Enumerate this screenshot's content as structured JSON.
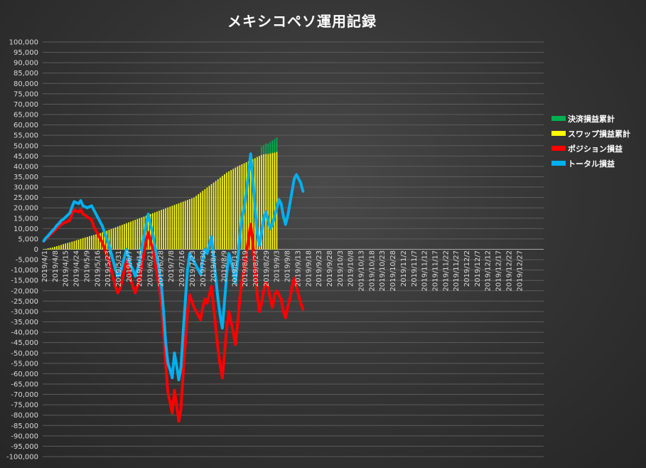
{
  "chart_data": {
    "type": "bar",
    "title": "メキシコペソ運用記録",
    "ylim": [
      -100000,
      100000
    ],
    "y_ticks": [
      100000,
      95000,
      90000,
      85000,
      80000,
      75000,
      70000,
      65000,
      60000,
      55000,
      50000,
      45000,
      40000,
      35000,
      30000,
      25000,
      20000,
      15000,
      10000,
      5000,
      0,
      -5000,
      -10000,
      -15000,
      -20000,
      -25000,
      -30000,
      -35000,
      -40000,
      -45000,
      -50000,
      -55000,
      -60000,
      -65000,
      -70000,
      -75000,
      -80000,
      -85000,
      -90000,
      -95000,
      -100000
    ],
    "y_tick_labels": [
      "100,000",
      "95,000",
      "90,000",
      "85,000",
      "80,000",
      "75,000",
      "70,000",
      "65,000",
      "60,000",
      "55,000",
      "50,000",
      "45,000",
      "40,000",
      "35,000",
      "30,000",
      "25,000",
      "20,000",
      "15,000",
      "10,000",
      "5,000",
      "0",
      "-5,000",
      "-10,000",
      "-15,000",
      "-20,000",
      "-25,000",
      "-30,000",
      "-35,000",
      "-40,000",
      "-45,000",
      "-50,000",
      "-55,000",
      "-60,000",
      "-65,000",
      "-70,000",
      "-75,000",
      "-80,000",
      "-85,000",
      "-90,000",
      "-95,000",
      "-100,000"
    ],
    "x_tick_labels": [
      "2019/4/1",
      "2019/4/8",
      "2019/4/15",
      "2019/4/24",
      "2019/5/9",
      "2019/5/16",
      "2019/5/23",
      "2019/5/31",
      "2019/6/7",
      "2019/6/14",
      "2019/6/21",
      "2019/6/28",
      "2019/7/8",
      "2019/7/16",
      "2019/7/23",
      "2019/7/30",
      "2019/8/4",
      "2019/8/9",
      "2019/8/14",
      "2019/8/19",
      "2019/8/24",
      "2019/8/29",
      "2019/9/3",
      "2019/9/8",
      "2019/9/13",
      "2019/9/18",
      "2019/9/23",
      "2019/9/28",
      "2019/10/3",
      "2019/10/8",
      "2019/10/13",
      "2019/10/18",
      "2019/10/23",
      "2019/10/28",
      "2019/11/2",
      "2019/11/7",
      "2019/11/12",
      "2019/11/17",
      "2019/11/22",
      "2019/11/27",
      "2019/12/2",
      "2019/12/7",
      "2019/12/12",
      "2019/12/17",
      "2019/12/22",
      "2019/12/27"
    ],
    "total_slots": 230,
    "series": [
      {
        "name": "決済損益累計",
        "kind": "bar",
        "color": "#00b050",
        "values": [
          0,
          0,
          0,
          0,
          0,
          0,
          0,
          0,
          0,
          0,
          0,
          0,
          0,
          0,
          0,
          0,
          0,
          0,
          0,
          0,
          0,
          0,
          0,
          0,
          0,
          0,
          0,
          0,
          0,
          0,
          0,
          0,
          0,
          0,
          0,
          0,
          0,
          0,
          0,
          0,
          0,
          0,
          0,
          0,
          0,
          0,
          0,
          0,
          0,
          0,
          0,
          0,
          0,
          0,
          0,
          0,
          0,
          0,
          0,
          0,
          0,
          0,
          0,
          0,
          0,
          0,
          0,
          0,
          0,
          0,
          0,
          0,
          0,
          0,
          0,
          0,
          0,
          0,
          0,
          0,
          0,
          0,
          0,
          0,
          0,
          0,
          0,
          0,
          0,
          0,
          0,
          0,
          0,
          0,
          0,
          0,
          0,
          0,
          0,
          0,
          4000,
          4500,
          5000,
          5000,
          5500,
          6000,
          6500,
          7000
        ]
      },
      {
        "name": "スワップ損益累計",
        "kind": "bar",
        "color": "#ffff00",
        "values": [
          0,
          200,
          500,
          700,
          900,
          1200,
          1500,
          1800,
          2100,
          2500,
          2800,
          3100,
          3400,
          3700,
          4000,
          4400,
          4700,
          5000,
          5400,
          5700,
          6000,
          6300,
          6600,
          6900,
          7200,
          7500,
          7800,
          8200,
          8600,
          9000,
          9400,
          9800,
          10200,
          10600,
          11000,
          11400,
          11800,
          12200,
          12600,
          13000,
          13400,
          13800,
          14200,
          14600,
          15000,
          15400,
          15800,
          16200,
          16600,
          17000,
          17400,
          17800,
          18200,
          18600,
          19000,
          19400,
          19800,
          20200,
          20600,
          21000,
          21400,
          21800,
          22200,
          22600,
          23000,
          23400,
          23800,
          24200,
          24600,
          25000,
          25800,
          26600,
          27400,
          28200,
          29000,
          29800,
          30600,
          31400,
          32200,
          33000,
          33800,
          34600,
          35400,
          36200,
          37000,
          37600,
          38200,
          38800,
          39400,
          40000,
          40500,
          41000,
          41500,
          42000,
          42500,
          43000,
          43500,
          44000,
          44500,
          45000,
          45500,
          45800,
          46000,
          46000,
          46300,
          46500,
          46700,
          47000
        ]
      },
      {
        "name": "ポジション損益",
        "kind": "line",
        "color": "#ff0000",
        "values": [
          4000,
          5000,
          6000,
          7000,
          8000,
          9000,
          10000,
          11000,
          12000,
          12500,
          13000,
          13500,
          14000,
          17000,
          19000,
          18500,
          18000,
          19000,
          17000,
          16500,
          15500,
          15000,
          14000,
          11000,
          9000,
          7000,
          5000,
          3000,
          0,
          -3000,
          -6000,
          -10000,
          -14000,
          -18000,
          -21000,
          -19000,
          -15000,
          -10000,
          -6000,
          -10000,
          -15000,
          -18000,
          -21000,
          -18000,
          -14000,
          -8000,
          -2000,
          4000,
          8000,
          4000,
          0,
          -6000,
          -12000,
          -18000,
          -26000,
          -40000,
          -55000,
          -69000,
          -74000,
          -79000,
          -68000,
          -75000,
          -83000,
          -77000,
          -60000,
          -45000,
          -30000,
          -22000,
          -25000,
          -28000,
          -30000,
          -32000,
          -34000,
          -28000,
          -24000,
          -26000,
          -22000,
          -18000,
          -28000,
          -38000,
          -48000,
          -56000,
          -62000,
          -50000,
          -38000,
          -30000,
          -35000,
          -40000,
          -46000,
          -36000,
          -24000,
          -15000,
          -10000,
          -2000,
          5000,
          12000,
          3000,
          -10000,
          -22000,
          -30000,
          -26000,
          -20000,
          -16000,
          -18000,
          -24000,
          -28000,
          -22000,
          -20000,
          -22000,
          -24000,
          -30000,
          -33000,
          -28000,
          -24000,
          -18000,
          -14000,
          -18000,
          -22000,
          -26000,
          -29000
        ]
      },
      {
        "name": "トータル損益",
        "kind": "line",
        "color": "#00b0f0",
        "values": [
          4000,
          5500,
          6500,
          7800,
          9000,
          10000,
          11500,
          12500,
          13800,
          14500,
          15500,
          16500,
          17500,
          20500,
          23000,
          22500,
          22000,
          23500,
          21000,
          20500,
          20000,
          20500,
          21000,
          19000,
          17000,
          15000,
          13000,
          11000,
          8000,
          5000,
          2000,
          -2000,
          -6000,
          -10000,
          -13000,
          -12000,
          -8000,
          -4000,
          0,
          -4000,
          -8000,
          -10000,
          -13000,
          -10000,
          -6000,
          0,
          6000,
          12000,
          17000,
          12000,
          8000,
          2000,
          -4000,
          -10000,
          -17000,
          -30000,
          -45000,
          -55000,
          -58000,
          -62000,
          -50000,
          -56000,
          -63000,
          -57000,
          -40000,
          -25000,
          -10000,
          -2000,
          -4000,
          -6000,
          -8000,
          -10000,
          -12000,
          -5000,
          0,
          -2000,
          2000,
          6000,
          -4000,
          -14000,
          -24000,
          -32000,
          -38000,
          -25000,
          -12000,
          -2000,
          -6000,
          -10000,
          -16000,
          -6000,
          6000,
          15000,
          20000,
          28000,
          36000,
          46000,
          34000,
          20000,
          8000,
          2000,
          8000,
          15000,
          18000,
          14000,
          10000,
          12000,
          16000,
          20000,
          24000,
          22000,
          16000,
          12000,
          16000,
          22000,
          28000,
          34000,
          36000,
          34000,
          32000,
          28000
        ]
      }
    ],
    "legend_position": "right",
    "grid": true
  }
}
